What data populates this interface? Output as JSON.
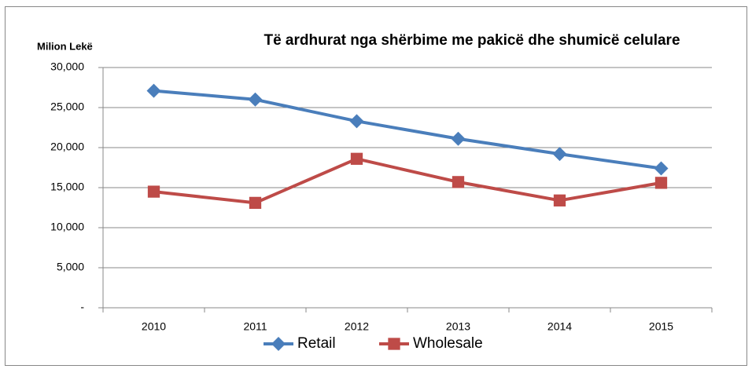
{
  "chart_data": {
    "type": "line",
    "title": "Të ardhurat nga shërbime me pakicë dhe shumicë celulare",
    "y_label": "Milion Lekë",
    "categories": [
      "2010",
      "2011",
      "2012",
      "2013",
      "2014",
      "2015"
    ],
    "series": [
      {
        "name": "Retail",
        "color": "#4a7ebb",
        "marker": "diamond",
        "values": [
          27100,
          26000,
          23300,
          21100,
          19200,
          17400
        ]
      },
      {
        "name": "Wholesale",
        "color": "#be4b48",
        "marker": "square",
        "values": [
          14500,
          13100,
          18600,
          15700,
          13400,
          15600
        ]
      }
    ],
    "ylim": [
      0,
      30000
    ],
    "yticks": [
      {
        "value": 0,
        "label": "-"
      },
      {
        "value": 5000,
        "label": "5,000"
      },
      {
        "value": 10000,
        "label": "10,000"
      },
      {
        "value": 15000,
        "label": "15,000"
      },
      {
        "value": 20000,
        "label": "20,000"
      },
      {
        "value": 25000,
        "label": "25,000"
      },
      {
        "value": 30000,
        "label": "30,000"
      }
    ],
    "grid": true,
    "legend": "bottom"
  }
}
